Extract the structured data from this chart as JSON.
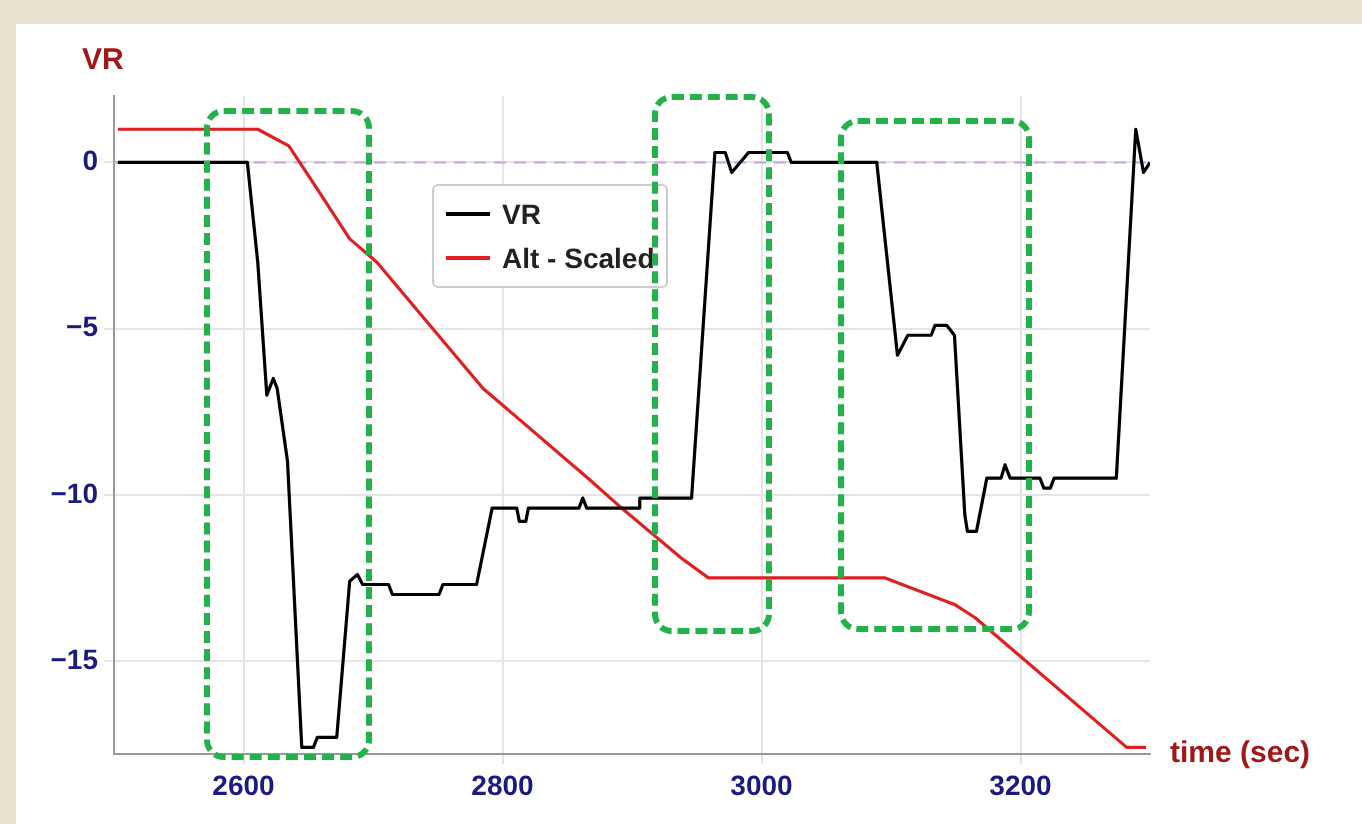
{
  "chart_data": {
    "type": "line",
    "xlabel": "time (sec)",
    "ylabel": "VR",
    "xlim": [
      2500,
      3300
    ],
    "xticks": [
      2600,
      2800,
      3000,
      3200
    ],
    "ylim": [
      -17.8,
      2
    ],
    "yticks": [
      -15,
      -10,
      -5,
      0
    ],
    "grid": true,
    "legend": "top",
    "marker": "none",
    "line_style": "solid",
    "ref_lines": [
      {
        "axis": "y",
        "value": 0,
        "color": "#c8a0e0",
        "line_style": "dashed"
      }
    ],
    "series": [
      {
        "name": "VR",
        "color": "#000000",
        "x": [
          2503,
          2603,
          2611,
          2618,
          2623,
          2626,
          2634,
          2645,
          2654,
          2657,
          2672,
          2682,
          2688,
          2692,
          2712,
          2715,
          2751,
          2754,
          2780,
          2792,
          2811,
          2813,
          2818,
          2820,
          2859,
          2862,
          2865,
          2905,
          2906,
          2938,
          2946,
          2964,
          2972,
          2977,
          2990,
          3000,
          3020,
          3023,
          3089,
          3105,
          3113,
          3131,
          3134,
          3143,
          3149,
          3157,
          3159,
          3166,
          3174,
          3185,
          3188,
          3192,
          3215,
          3218,
          3223,
          3226,
          3274,
          3289,
          3295,
          3300
        ],
        "values": [
          0,
          0,
          -3,
          -7.0,
          -6.5,
          -6.8,
          -9,
          -17.6,
          -17.6,
          -17.3,
          -17.3,
          -12.6,
          -12.4,
          -12.7,
          -12.7,
          -13.0,
          -13.0,
          -12.7,
          -12.7,
          -10.4,
          -10.4,
          -10.8,
          -10.8,
          -10.4,
          -10.4,
          -10.1,
          -10.4,
          -10.4,
          -10.1,
          -10.1,
          -10.1,
          0.3,
          0.3,
          -0.3,
          0.3,
          0.3,
          0.3,
          0,
          0,
          -5.8,
          -5.2,
          -5.2,
          -4.9,
          -4.9,
          -5.2,
          -10.6,
          -11.1,
          -11.1,
          -9.5,
          -9.5,
          -9.1,
          -9.5,
          -9.5,
          -9.8,
          -9.8,
          -9.5,
          -9.5,
          1.0,
          -0.3,
          0
        ]
      },
      {
        "name": "Alt - Scaled",
        "color": "#e02020",
        "x": [
          2503,
          2603,
          2611,
          2635,
          2657,
          2682,
          2703,
          2785,
          2866,
          2892,
          2938,
          2959,
          3095,
          3149,
          3165,
          3282,
          3297
        ],
        "values": [
          1.0,
          1.0,
          1.0,
          0.5,
          -0.8,
          -2.3,
          -3.0,
          -6.8,
          -9.5,
          -10.4,
          -11.9,
          -12.5,
          -12.5,
          -13.3,
          -13.7,
          -17.6,
          -17.6
        ]
      }
    ]
  }
}
